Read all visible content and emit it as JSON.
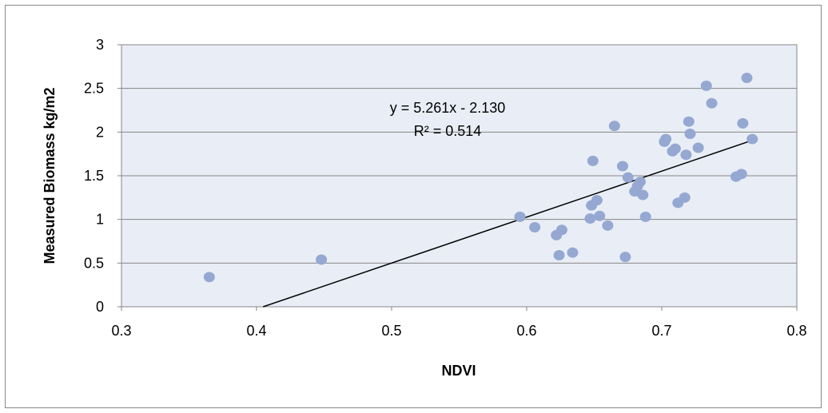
{
  "chart_data": {
    "type": "scatter",
    "title": "",
    "xlabel": "NDVI",
    "ylabel": "Measured Biomass  kg/m2",
    "xlim": [
      0.3,
      0.8
    ],
    "ylim": [
      0,
      3
    ],
    "x_ticks": [
      "0.3",
      "0.4",
      "0.5",
      "0.6",
      "0.7",
      "0.8"
    ],
    "y_ticks": [
      "0",
      "0.5",
      "1",
      "1.5",
      "2",
      "2.5",
      "3"
    ],
    "grid": true,
    "legend": "none",
    "colors": {
      "plot_bg": "#e9edf5",
      "marker": "#94a8d2",
      "trendline": "#000000",
      "grid": "#868686"
    },
    "trendline": {
      "slope": 5.261,
      "intercept": -2.13
    },
    "annotations": {
      "equation": "y = 5.261x - 2.130",
      "r2": "R² = 0.514"
    },
    "series": [
      {
        "points": [
          [
            0.365,
            0.34
          ],
          [
            0.448,
            0.54
          ],
          [
            0.595,
            1.03
          ],
          [
            0.606,
            0.91
          ],
          [
            0.622,
            0.82
          ],
          [
            0.624,
            0.59
          ],
          [
            0.626,
            0.88
          ],
          [
            0.634,
            0.62
          ],
          [
            0.647,
            1.01
          ],
          [
            0.648,
            1.16
          ],
          [
            0.649,
            1.67
          ],
          [
            0.652,
            1.22
          ],
          [
            0.654,
            1.04
          ],
          [
            0.66,
            0.93
          ],
          [
            0.665,
            2.07
          ],
          [
            0.671,
            1.61
          ],
          [
            0.673,
            0.57
          ],
          [
            0.675,
            1.48
          ],
          [
            0.68,
            1.32
          ],
          [
            0.682,
            1.38
          ],
          [
            0.684,
            1.43
          ],
          [
            0.686,
            1.28
          ],
          [
            0.688,
            1.03
          ],
          [
            0.702,
            1.89
          ],
          [
            0.703,
            1.92
          ],
          [
            0.708,
            1.78
          ],
          [
            0.71,
            1.81
          ],
          [
            0.712,
            1.19
          ],
          [
            0.717,
            1.25
          ],
          [
            0.718,
            1.74
          ],
          [
            0.72,
            2.12
          ],
          [
            0.721,
            1.98
          ],
          [
            0.727,
            1.82
          ],
          [
            0.733,
            2.53
          ],
          [
            0.737,
            2.33
          ],
          [
            0.755,
            1.49
          ],
          [
            0.759,
            1.52
          ],
          [
            0.76,
            2.1
          ],
          [
            0.763,
            2.62
          ],
          [
            0.767,
            1.92
          ]
        ]
      }
    ]
  }
}
